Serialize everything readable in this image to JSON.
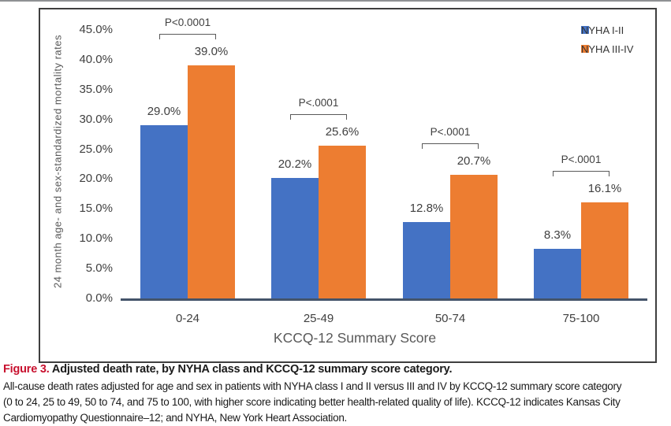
{
  "page": {
    "figure_label": "Figure 3.",
    "figure_title": " Adjusted death rate, by NYHA class and KCCQ-12 summary score category.",
    "caption_lines": [
      "All-cause death rates adjusted for age and sex in patients with NYHA class I and II versus III and IV by KCCQ-12 summary score category",
      "(0 to 24, 25 to 49, 50 to 74, and 75 to 100, with higher score indicating better health-related quality of life). KCCQ-12 indicates Kansas City",
      "Cardiomyopathy Questionnaire–12; and NYHA, New York Heart Association."
    ]
  },
  "colors": {
    "nyha_1_2_blue": "#4472C4",
    "nyha_3_4_orange": "#ED7D31",
    "axis_line": "#44546A",
    "chart_text": "#404040",
    "axis_title_text": "#595959",
    "bracket": "#595959",
    "figure_label_red": "#C8102E",
    "border": "#3F3F3F"
  },
  "chart_data": {
    "type": "bar",
    "title": "",
    "categories": [
      "0-24",
      "25-49",
      "50-74",
      "75-100"
    ],
    "series": [
      {
        "name": "NYHA I-II",
        "color": "#4472C4",
        "values": [
          29.0,
          20.2,
          12.8,
          8.3
        ],
        "labels": [
          "29.0%",
          "20.2%",
          "12.8%",
          "8.3%"
        ]
      },
      {
        "name": "NYHA III-IV",
        "color": "#ED7D31",
        "values": [
          39.0,
          25.6,
          20.7,
          16.1
        ],
        "labels": [
          "39.0%",
          "25.6%",
          "20.7%",
          "16.1%"
        ]
      }
    ],
    "p_values": [
      "P<0.0001",
      "P<.0001",
      "P<.0001",
      "P<.0001"
    ],
    "xlabel": "KCCQ-12 Summary Score",
    "ylabel": "24 month age- and sex-standardized mortality rates",
    "ylim": [
      0,
      45
    ],
    "yticks": [
      0,
      5,
      10,
      15,
      20,
      25,
      30,
      35,
      40,
      45
    ],
    "ytick_labels": [
      "0.0%",
      "5.0%",
      "10.0%",
      "15.0%",
      "20.0%",
      "25.0%",
      "30.0%",
      "35.0%",
      "40.0%",
      "45.0%"
    ],
    "grid": false,
    "legend_position": "top-right"
  }
}
